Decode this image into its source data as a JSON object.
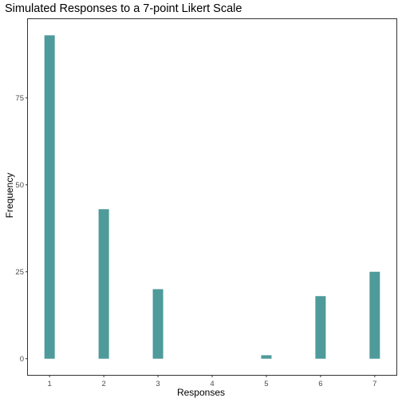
{
  "chart_data": {
    "type": "bar",
    "title": "Simulated Responses to a 7-point Likert Scale",
    "xlabel": "Responses",
    "ylabel": "Frequency",
    "categories": [
      "1",
      "2",
      "3",
      "4",
      "5",
      "6",
      "7"
    ],
    "values": [
      93,
      43,
      20,
      0,
      1,
      18,
      25
    ],
    "yticks": [
      0,
      25,
      50,
      75
    ],
    "ylim": [
      -4.65,
      97.65
    ],
    "bar_color": "#4f9a9a",
    "grid": false,
    "legend": "none"
  }
}
